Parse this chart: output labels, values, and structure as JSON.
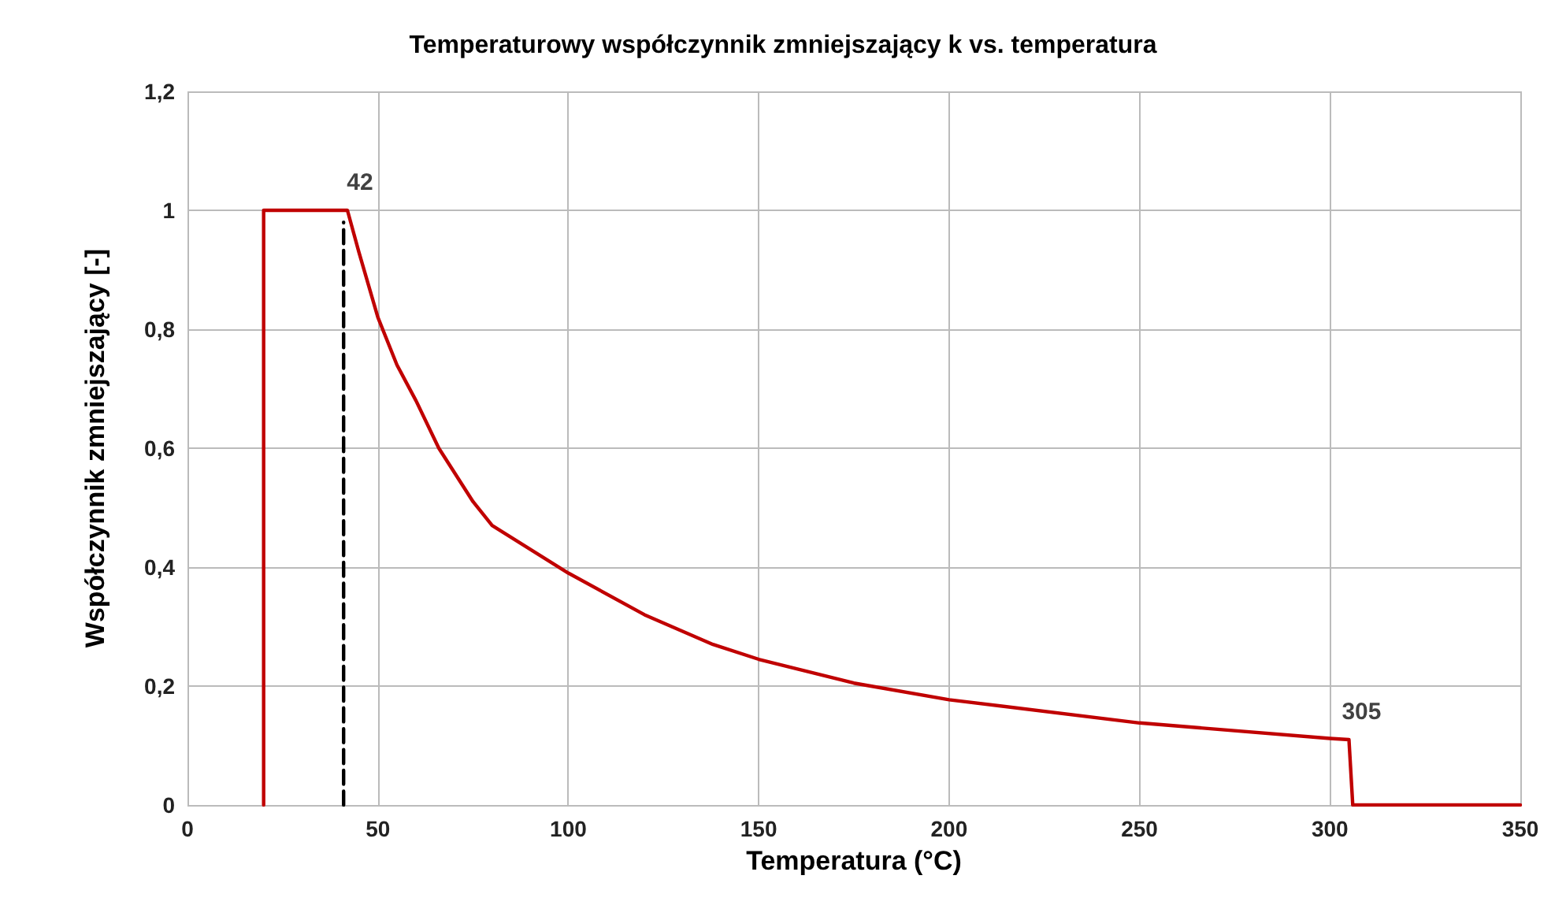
{
  "chart_data": {
    "type": "line",
    "title": "Temperaturowy współczynnik zmniejszający k vs. temperatura",
    "xlabel": "Temperatura (°C)",
    "ylabel": "Współczynnik zmniejszający [-]",
    "xlim": [
      0,
      350
    ],
    "xticks": [
      0,
      50,
      100,
      150,
      200,
      250,
      300,
      350
    ],
    "ylim": [
      0,
      1.2
    ],
    "yticks": [
      0,
      {
        "value": 0.2,
        "label": "0,2"
      },
      {
        "value": 0.4,
        "label": "0,4"
      },
      {
        "value": 0.6,
        "label": "0,6"
      },
      {
        "value": 0.8,
        "label": "0,8"
      },
      1,
      {
        "value": 1.2,
        "label": "1,2"
      }
    ],
    "grid": true,
    "marker": "none",
    "series": [
      {
        "color": "#c00000",
        "line_style": "solid",
        "x": [
          20,
          20,
          42,
          45,
          50,
          55,
          60,
          66,
          75,
          80,
          90,
          100,
          120,
          138,
          150,
          175,
          200,
          250,
          300,
          305,
          306,
          350
        ],
        "values": [
          0,
          1,
          1,
          0.93,
          0.82,
          0.74,
          0.68,
          0.6,
          0.51,
          0.47,
          0.43,
          0.39,
          0.32,
          0.27,
          0.245,
          0.205,
          0.177,
          0.138,
          0.112,
          0.11,
          0,
          0
        ]
      },
      {
        "color": "#000000",
        "line_style": "dashed",
        "x": [
          41,
          41
        ],
        "values": [
          0,
          0.98
        ]
      }
    ],
    "annotations": [
      {
        "text": "42",
        "x": 42,
        "y": 1
      },
      {
        "text": "305",
        "x": 305,
        "y": 0.11
      }
    ]
  }
}
